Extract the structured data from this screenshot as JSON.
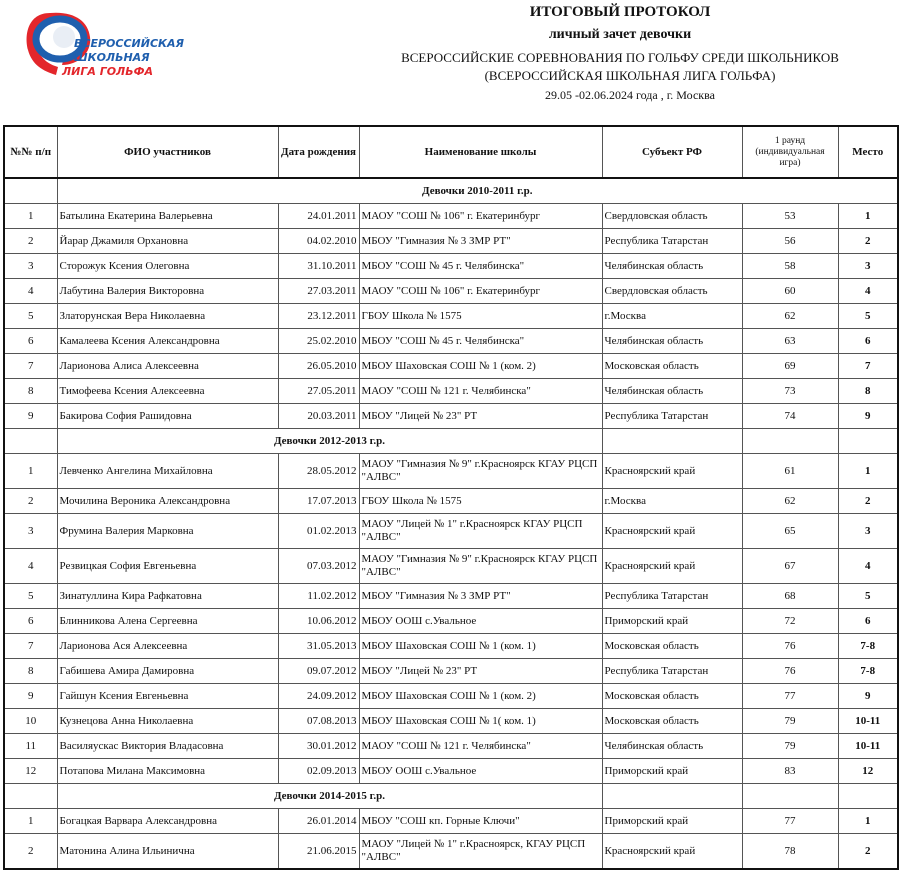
{
  "logo": {
    "lines": [
      "ВСЕРОССИЙСКАЯ",
      "ШКОЛЬНАЯ",
      "ЛИГА ГОЛЬФА"
    ],
    "colors": {
      "red": "#e3262b",
      "blue": "#1f5fae"
    }
  },
  "header": {
    "title": "ИТОГОВЫЙ ПРОТОКОЛ",
    "subtitle": "личный зачет  девочки",
    "event": "ВСЕРОССИЙСКИЕ СОРЕВНОВАНИЯ ПО ГОЛЬФУ СРЕДИ ШКОЛЬНИКОВ",
    "league": "(ВСЕРОССИЙСКАЯ ШКОЛЬНАЯ ЛИГА ГОЛЬФА)",
    "dates": "29.05 -02.06.2024 года , г. Москва"
  },
  "columns": [
    "№№ п/п",
    "ФИО участников",
    "Дата рождения",
    "Наименование школы",
    "Субъект РФ",
    "1 раунд (индивидуальная игра)",
    "Место"
  ],
  "groups": [
    {
      "title": "Девочки 2010-2011 г.р.",
      "rows": [
        [
          "1",
          "Батылина Екатерина Валерьевна",
          "24.01.2011",
          "МАОУ \"СОШ № 106\" г. Екатеринбург",
          "Свердловская область",
          "53",
          "1"
        ],
        [
          "2",
          "Йарар Джамиля Орхановна",
          "04.02.2010",
          "МБОУ \"Гимназия № 3 ЗМР РТ\"",
          "Республика Татарстан",
          "56",
          "2"
        ],
        [
          "3",
          "Сторожук Ксения Олеговна",
          "31.10.2011",
          "МБОУ \"СОШ № 45 г. Челябинска\"",
          "Челябинская область",
          "58",
          "3"
        ],
        [
          "4",
          "Лабутина Валерия Викторовна",
          "27.03.2011",
          "МАОУ \"СОШ № 106\" г. Екатеринбург",
          "Свердловская область",
          "60",
          "4"
        ],
        [
          "5",
          "Златорунская Вера Николаевна",
          "23.12.2011",
          "ГБОУ Школа № 1575",
          "г.Москва",
          "62",
          "5"
        ],
        [
          "6",
          "Камалеева Ксения Александровна",
          "25.02.2010",
          "МБОУ \"СОШ № 45 г. Челябинска\"",
          "Челябинская область",
          "63",
          "6"
        ],
        [
          "7",
          "Ларионова Алиса Алексеевна",
          "26.05.2010",
          "МБОУ Шаховская СОШ № 1 (ком. 2)",
          "Московская область",
          "69",
          "7"
        ],
        [
          "8",
          "Тимофеева Ксения Алексеевна",
          "27.05.2011",
          "МАОУ \"СОШ № 121 г. Челябинска\"",
          "Челябинская область",
          "73",
          "8"
        ],
        [
          "9",
          "Бакирова София Рашидовна",
          "20.03.2011",
          "МБОУ \"Лицей № 23\" РТ",
          "Республика Татарстан",
          "74",
          "9"
        ]
      ]
    },
    {
      "title": "Девочки 2012-2013 г.р.",
      "rows": [
        [
          "1",
          "Левченко Ангелина Михайловна",
          "28.05.2012",
          "МАОУ \"Гимназия № 9\" г.Красноярск КГАУ РЦСП \"АЛВС\"",
          "Красноярский край",
          "61",
          "1"
        ],
        [
          "2",
          "Мочилина Вероника Александровна",
          "17.07.2013",
          "ГБОУ Школа № 1575",
          "г.Москва",
          "62",
          "2"
        ],
        [
          "3",
          "Фрумина Валерия Марковна",
          "01.02.2013",
          "МАОУ \"Лицей № 1\" г.Красноярск   КГАУ РЦСП \"АЛВС\"",
          "Красноярский край",
          "65",
          "3"
        ],
        [
          "4",
          "Резвицкая София Евгеньевна",
          "07.03.2012",
          "МАОУ \"Гимназия № 9\" г.Красноярск КГАУ РЦСП \"АЛВС\"",
          "Красноярский край",
          "67",
          "4"
        ],
        [
          "5",
          "Зинатуллина Кира Рафкатовна",
          "11.02.2012",
          "МБОУ \"Гимназия № 3 ЗМР РТ\"",
          "Республика Татарстан",
          "68",
          "5"
        ],
        [
          "6",
          "Блинникова Алена Сергеевна",
          "10.06.2012",
          "МБОУ ООШ с.Увальное",
          "Приморский край",
          "72",
          "6"
        ],
        [
          "7",
          "Ларионова Ася Алексеевна",
          "31.05.2013",
          "МБОУ Шаховская СОШ № 1 (ком. 1)",
          "Московская область",
          "76",
          "7-8"
        ],
        [
          "8",
          "Габишева Амира Дамировна",
          "09.07.2012",
          "МБОУ \"Лицей № 23\" РТ",
          "Республика Татарстан",
          "76",
          "7-8"
        ],
        [
          "9",
          "Гайшун Ксения Евгеньевна",
          "24.09.2012",
          "МБОУ Шаховская СОШ № 1 (ком. 2)",
          "Московская область",
          "77",
          "9"
        ],
        [
          "10",
          "Кузнецова Анна Николаевна",
          "07.08.2013",
          "МБОУ Шаховская СОШ № 1( ком. 1)",
          "Московская область",
          "79",
          "10-11"
        ],
        [
          "11",
          "Василяускас Виктория Владасовна",
          "30.01.2012",
          "МАОУ \"СОШ № 121 г. Челябинска\"",
          "Челябинская область",
          "79",
          "10-11"
        ],
        [
          "12",
          "Потапова Милана Максимовна",
          "02.09.2013",
          "МБОУ ООШ с.Увальное",
          "Приморский край",
          "83",
          "12"
        ]
      ]
    },
    {
      "title": "Девочки 2014-2015 г.р.",
      "rows": [
        [
          "1",
          "Богацкая Варвара Александровна",
          "26.01.2014",
          "МБОУ \"СОШ кп. Горные Ключи\"",
          "Приморский край",
          "77",
          "1"
        ],
        [
          "2",
          "Матонина Алина  Ильинична",
          "21.06.2015",
          "МАОУ \"Лицей № 1\" г.Красноярск, КГАУ РЦСП \"АЛВС\"",
          "Красноярский край",
          "78",
          "2"
        ]
      ]
    }
  ]
}
